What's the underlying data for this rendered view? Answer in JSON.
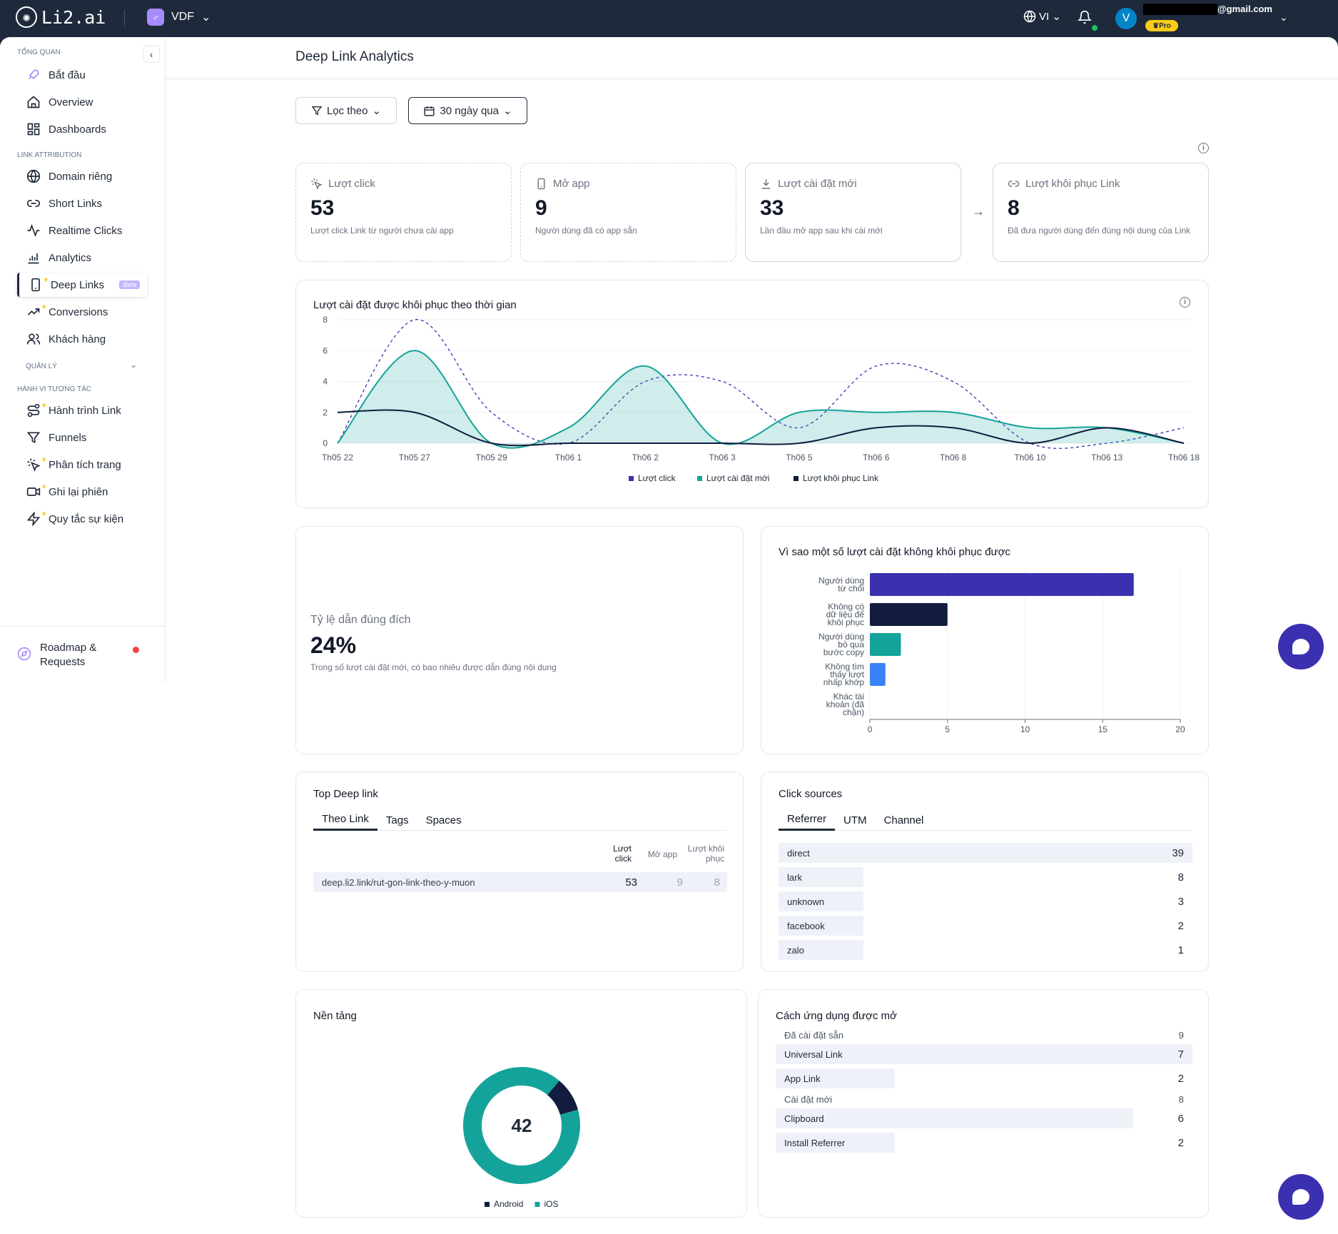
{
  "topbar": {
    "logo": "Li2.ai",
    "workspace": "VDF",
    "language": "VI",
    "avatar_initial": "V",
    "email": "@gmail.com",
    "plan_badge": "Pro"
  },
  "sidebar": {
    "sections": {
      "overview": "TỔNG QUAN",
      "attribution": "LINK ATTRIBUTION",
      "manage": "QUẢN LÝ",
      "behavior": "HÀNH VI TƯƠNG TÁC"
    },
    "items": [
      {
        "label": "Bắt đầu",
        "icon": "rocket-icon"
      },
      {
        "label": "Overview",
        "icon": "home-icon"
      },
      {
        "label": "Dashboards",
        "icon": "grid-icon"
      },
      {
        "label": "Domain riêng",
        "icon": "globe-icon"
      },
      {
        "label": "Short Links",
        "icon": "link-icon"
      },
      {
        "label": "Realtime Clicks",
        "icon": "activity-icon"
      },
      {
        "label": "Analytics",
        "icon": "bar-chart-icon"
      },
      {
        "label": "Deep Links",
        "icon": "phone-icon",
        "badge": "Beta"
      },
      {
        "label": "Conversions",
        "icon": "trend-icon"
      },
      {
        "label": "Khách hàng",
        "icon": "users-icon"
      },
      {
        "label": "Hành trình Link",
        "icon": "route-icon"
      },
      {
        "label": "Funnels",
        "icon": "funnel-icon"
      },
      {
        "label": "Phân tích trang",
        "icon": "cursor-click-icon"
      },
      {
        "label": "Ghi lại phiên",
        "icon": "video-icon"
      },
      {
        "label": "Quy tắc sự kiện",
        "icon": "zap-icon"
      }
    ],
    "roadmap_label": "Roadmap &\nRequests"
  },
  "page": {
    "title": "Deep Link Analytics",
    "filter_label": "Lọc theo",
    "date_range": "30 ngày qua"
  },
  "stats": [
    {
      "label": "Lượt click",
      "value": "53",
      "desc": "Lượt click Link từ người chưa cài app",
      "icon": "cursor-click-icon"
    },
    {
      "label": "Mở app",
      "value": "9",
      "desc": "Người dùng đã có app sẵn",
      "icon": "phone-icon"
    },
    {
      "label": "Lượt cài đặt mới",
      "value": "33",
      "desc": "Lần đầu mở app sau khi cài mới",
      "icon": "download-icon"
    },
    {
      "label": "Lượt khôi phục Link",
      "value": "8",
      "desc": "Đã đưa người dùng đến đúng nội dung của Link",
      "icon": "link-icon"
    }
  ],
  "colors": {
    "click": "#3b30b0",
    "install": "#14a39a",
    "restore": "#111c3f",
    "blue": "#3b82f6"
  },
  "chart_data": [
    {
      "type": "line",
      "title": "Lượt cài đặt được khôi phục theo thời gian",
      "x": [
        "Th05 22",
        "Th05 27",
        "Th05 29",
        "Th06 1",
        "Th06 2",
        "Th06 3",
        "Th06 5",
        "Th06 6",
        "Th06 8",
        "Th06 10",
        "Th06 13",
        "Th06 18"
      ],
      "ylim": [
        0,
        8
      ],
      "yticks": [
        0,
        2,
        4,
        6,
        8
      ],
      "legend_position": "bottom",
      "series": [
        {
          "name": "Lượt click",
          "style": "dashed",
          "values": [
            0,
            8,
            2,
            0,
            4,
            4,
            1,
            5,
            4,
            0,
            0,
            1
          ]
        },
        {
          "name": "Lượt cài đặt mới",
          "style": "area",
          "values": [
            0,
            6,
            0,
            1,
            5,
            0,
            2,
            2,
            2,
            1,
            1,
            0
          ]
        },
        {
          "name": "Lượt khôi phục Link",
          "style": "solid",
          "values": [
            2,
            2,
            0,
            0,
            0,
            0,
            0,
            1,
            1,
            0,
            1,
            0
          ]
        }
      ]
    },
    {
      "type": "bar",
      "orientation": "horizontal",
      "title": "Vì sao một số lượt cài đặt không khôi phục được",
      "categories": [
        "Người dùng từ chối",
        "Không có dữ liệu để khôi phục",
        "Người dùng bỏ qua bước copy",
        "Không tìm thấy lượt nhấp khớp",
        "Khác tài khoản (đã chặn)"
      ],
      "values": [
        17,
        5,
        2,
        1,
        0
      ],
      "xlim": [
        0,
        20
      ],
      "xticks": [
        0,
        5,
        10,
        15,
        20
      ]
    },
    {
      "type": "pie",
      "title": "Nền tảng",
      "center_label": "42",
      "categories": [
        "Android",
        "iOS"
      ],
      "values": [
        4,
        38
      ]
    }
  ],
  "success_rate": {
    "label": "Tỷ lệ dẫn đúng đích",
    "value": "24%",
    "desc": "Trong số lượt cài đặt mới, có bao nhiêu được dẫn đúng nội dung"
  },
  "top_links": {
    "title": "Top Deep link",
    "tabs": [
      "Theo Link",
      "Tags",
      "Spaces"
    ],
    "columns": [
      "Lượt click",
      "Mở app",
      "Lượt khôi phục"
    ],
    "rows": [
      {
        "link": "deep.li2.link/rut-gon-link-theo-y-muon",
        "clicks": "53",
        "opens": "9",
        "restores": "8"
      }
    ]
  },
  "click_sources": {
    "title": "Click sources",
    "tabs": [
      "Referrer",
      "UTM",
      "Channel"
    ],
    "rows": [
      {
        "name": "direct",
        "value": 39
      },
      {
        "name": "lark",
        "value": 8
      },
      {
        "name": "unknown",
        "value": 3
      },
      {
        "name": "facebook",
        "value": 2
      },
      {
        "name": "zalo",
        "value": 1
      }
    ]
  },
  "app_open": {
    "title": "Cách ứng dụng được mở",
    "groups": [
      {
        "label": "Đã cài đặt sẵn",
        "total": "9",
        "items": [
          {
            "name": "Universal Link",
            "value": 7
          },
          {
            "name": "App Link",
            "value": 2
          }
        ]
      },
      {
        "label": "Cài đặt mới",
        "total": "8",
        "items": [
          {
            "name": "Clipboard",
            "value": 6
          },
          {
            "name": "Install Referrer",
            "value": 2
          }
        ]
      }
    ]
  }
}
